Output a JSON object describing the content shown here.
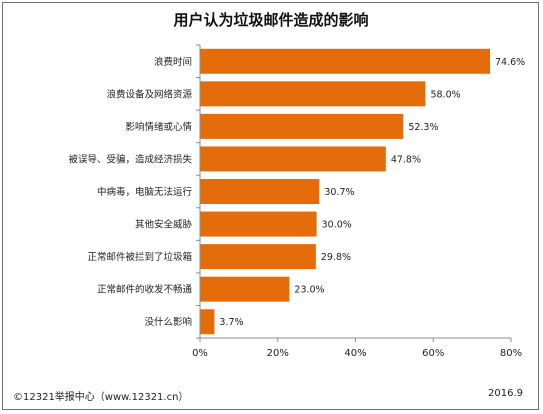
{
  "chart_data": {
    "type": "bar",
    "orientation": "horizontal",
    "title": "用户认为垃圾邮件造成的影响",
    "categories": [
      "浪费时间",
      "浪费设备及网络资源",
      "影响情绪或心情",
      "被误导、受骗，造成经济损失",
      "中病毒，电脑无法运行",
      "其他安全威胁",
      "正常邮件被拦到了垃圾箱",
      "正常邮件的收发不畅通",
      "没什么影响"
    ],
    "values": [
      74.6,
      58.0,
      52.3,
      47.8,
      30.7,
      30.0,
      29.8,
      23.0,
      3.7
    ],
    "value_labels": [
      "74.6%",
      "58.0%",
      "52.3%",
      "47.8%",
      "30.7%",
      "30.0%",
      "29.8%",
      "23.0%",
      "3.7%"
    ],
    "xlim": [
      0,
      80
    ],
    "xticks": [
      0,
      20,
      40,
      60,
      80
    ],
    "xtick_labels": [
      "0%",
      "20%",
      "40%",
      "60%",
      "80%"
    ],
    "xlabel": "",
    "ylabel": "",
    "grid": false,
    "bar_color": "#e46c0a"
  },
  "footer": {
    "source": "©12321举报中心（www.12321.cn）",
    "date": "2016.9"
  }
}
